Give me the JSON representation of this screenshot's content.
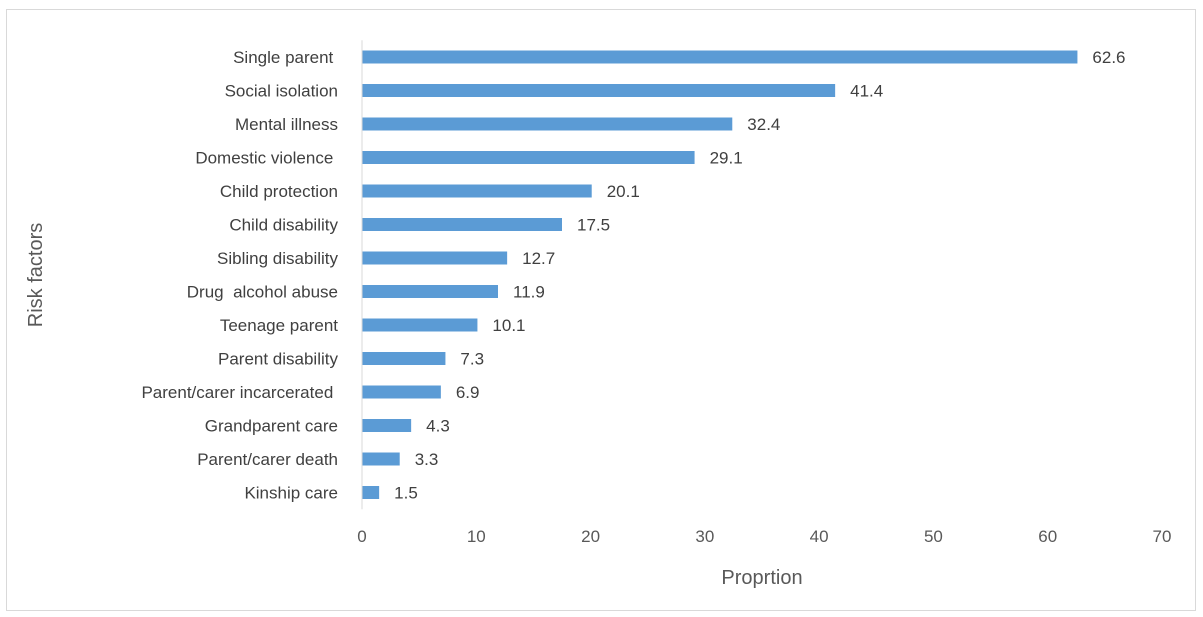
{
  "chart_data": {
    "type": "bar",
    "orientation": "horizontal",
    "categories": [
      "Single parent ",
      "Social isolation",
      "Mental illness",
      "Domestic violence ",
      "Child protection",
      "Child disability",
      "Sibling disability",
      "Drug  alcohol abuse",
      "Teenage parent",
      "Parent disability",
      "Parent/carer incarcerated ",
      "Grandparent care",
      "Parent/carer death",
      "Kinship care"
    ],
    "values": [
      62.6,
      41.4,
      32.4,
      29.1,
      20.1,
      17.5,
      12.7,
      11.9,
      10.1,
      7.3,
      6.9,
      4.3,
      3.3,
      1.5
    ],
    "data_labels": [
      "62.6",
      "41.4",
      "32.4",
      "29.1",
      "20.1",
      "17.5",
      "12.7",
      "11.9",
      "10.1",
      "7.3",
      "6.9",
      "4.3",
      "3.3",
      "1.5"
    ],
    "xlabel": "Proprtion",
    "ylabel": "Risk factors",
    "xlim": [
      0,
      70
    ],
    "xticks": [
      "0",
      "10",
      "20",
      "30",
      "40",
      "50",
      "60",
      "70"
    ],
    "grid": false,
    "legend": "none",
    "bar_color": "#5b9bd5"
  }
}
